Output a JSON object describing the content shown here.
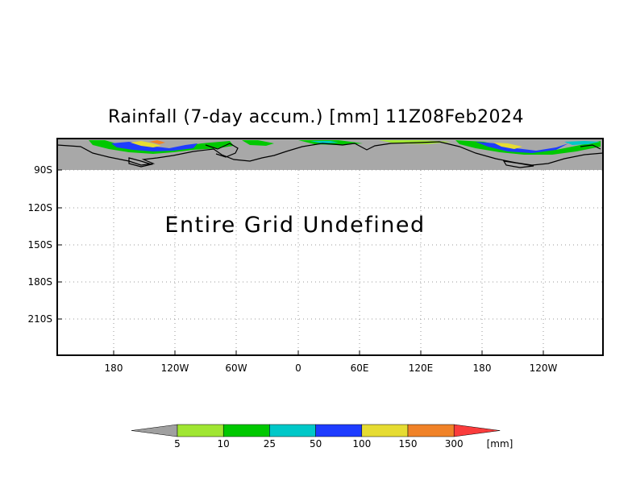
{
  "chart_data": {
    "type": "heatmap",
    "title": "Rainfall (7-day accum.) [mm] 11Z08Feb2024",
    "message": "Entire Grid Undefined",
    "x_ticks": [
      "180",
      "120W",
      "60W",
      "0",
      "60E",
      "120E",
      "180",
      "120W"
    ],
    "y_ticks": [
      "90S",
      "120S",
      "150S",
      "180S",
      "210S"
    ],
    "ylim": [
      "90S",
      "210S"
    ],
    "grid": true,
    "colorbar": {
      "unit": "[mm]",
      "levels": [
        "5",
        "10",
        "25",
        "50",
        "100",
        "150",
        "300"
      ],
      "colors": [
        "#a0a0a0",
        "#a0e632",
        "#00c800",
        "#00c8c8",
        "#1e3cff",
        "#e6dc32",
        "#f08228",
        "#fa3c3c"
      ]
    }
  }
}
